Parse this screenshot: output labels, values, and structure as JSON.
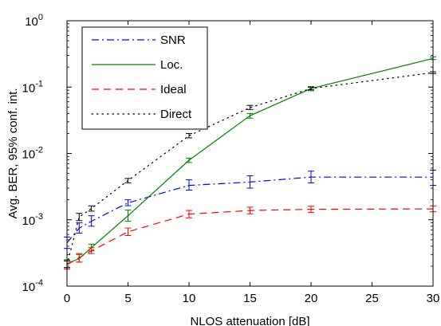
{
  "chart_data": {
    "type": "line",
    "title": "",
    "xlabel": "NLOS attenuation [dB]",
    "ylabel": "Avg. BER, 95% conf. int.",
    "xlim": [
      0,
      30
    ],
    "ylim": [
      0.0001,
      1
    ],
    "yscale": "log",
    "grid": false,
    "legend_position": "top-left",
    "x_ticks": [
      "0",
      "5",
      "10",
      "15",
      "20",
      "25",
      "30"
    ],
    "y_ticks": [
      {
        "base": "10",
        "exp": "-4"
      },
      {
        "base": "10",
        "exp": "-3"
      },
      {
        "base": "10",
        "exp": "-2"
      },
      {
        "base": "10",
        "exp": "-1"
      },
      {
        "base": "10",
        "exp": "0"
      }
    ],
    "x": [
      0,
      1,
      2,
      5,
      10,
      15,
      20,
      30
    ],
    "series": [
      {
        "name": "SNR",
        "color": "#0000ff",
        "dash": "dashdot",
        "values": [
          0.00045,
          0.00075,
          0.00095,
          0.0018,
          0.0033,
          0.0037,
          0.0044,
          0.0044
        ],
        "err_low": [
          0.00037,
          0.00063,
          0.0008,
          0.00163,
          0.0028,
          0.003,
          0.0036,
          0.0033
        ],
        "err_high": [
          0.00055,
          0.0009,
          0.00115,
          0.002,
          0.004,
          0.0046,
          0.0054,
          0.0056
        ]
      },
      {
        "name": "Loc.",
        "color": "#008000",
        "dash": "solid",
        "values": [
          0.00022,
          0.00026,
          0.00038,
          0.00115,
          0.0079,
          0.037,
          0.095,
          0.27
        ],
        "err_low": [
          0.00019,
          0.00023,
          0.00034,
          0.00095,
          0.0073,
          0.034,
          0.088,
          0.26
        ],
        "err_high": [
          0.00025,
          0.0003,
          0.00043,
          0.0014,
          0.0085,
          0.04,
          0.102,
          0.285
        ]
      },
      {
        "name": "Ideal",
        "color": "#ff0000",
        "dash": "dashed",
        "values": [
          0.00021,
          0.00027,
          0.00034,
          0.00066,
          0.00122,
          0.00138,
          0.00144,
          0.00146
        ],
        "err_low": [
          0.00018,
          0.00023,
          0.00031,
          0.00058,
          0.00107,
          0.00123,
          0.00129,
          0.00132
        ],
        "err_high": [
          0.00024,
          0.00031,
          0.00038,
          0.00075,
          0.00138,
          0.00155,
          0.0016,
          0.00162
        ]
      },
      {
        "name": "Direct",
        "color": "#000000",
        "dash": "dotted",
        "values": [
          0.00021,
          0.0011,
          0.00148,
          0.0039,
          0.0185,
          0.049,
          0.095,
          0.165
        ],
        "err_low": [
          0.00019,
          0.00097,
          0.00135,
          0.0036,
          0.0172,
          0.046,
          0.091,
          0.16
        ],
        "err_high": [
          0.00024,
          0.00125,
          0.00162,
          0.0042,
          0.02,
          0.053,
          0.099,
          0.17
        ]
      }
    ]
  }
}
